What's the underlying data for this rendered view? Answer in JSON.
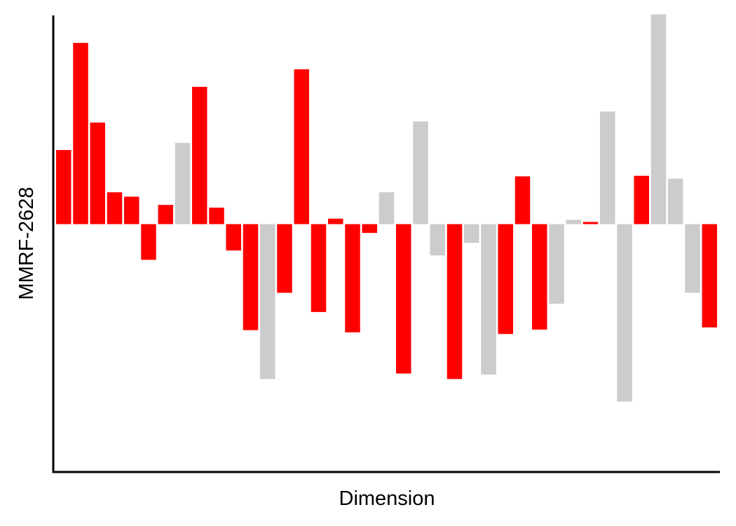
{
  "chart_data": {
    "type": "bar",
    "title": "",
    "xlabel": "Dimension",
    "ylabel": "MMRF-2628",
    "x_ticks_shown": false,
    "y_ticks_shown": false,
    "grid": false,
    "legend": "none",
    "ylim": [
      -4.5,
      3.8
    ],
    "colors": {
      "highlight": "#ff0000",
      "other": "#cccccc",
      "axis": "#000000"
    },
    "bars": [
      {
        "value": 1.35,
        "group": "highlight"
      },
      {
        "value": 3.3,
        "group": "highlight"
      },
      {
        "value": 1.85,
        "group": "highlight"
      },
      {
        "value": 0.58,
        "group": "highlight"
      },
      {
        "value": 0.5,
        "group": "highlight"
      },
      {
        "value": -0.65,
        "group": "highlight"
      },
      {
        "value": 0.35,
        "group": "highlight"
      },
      {
        "value": 1.48,
        "group": "other"
      },
      {
        "value": 2.5,
        "group": "highlight"
      },
      {
        "value": 0.3,
        "group": "highlight"
      },
      {
        "value": -0.48,
        "group": "highlight"
      },
      {
        "value": -1.93,
        "group": "highlight"
      },
      {
        "value": -2.82,
        "group": "other"
      },
      {
        "value": -1.25,
        "group": "highlight"
      },
      {
        "value": 2.82,
        "group": "highlight"
      },
      {
        "value": -1.6,
        "group": "highlight"
      },
      {
        "value": 0.1,
        "group": "highlight"
      },
      {
        "value": -1.97,
        "group": "highlight"
      },
      {
        "value": -0.16,
        "group": "highlight"
      },
      {
        "value": 0.58,
        "group": "other"
      },
      {
        "value": -2.72,
        "group": "highlight"
      },
      {
        "value": 1.87,
        "group": "other"
      },
      {
        "value": -0.57,
        "group": "other"
      },
      {
        "value": -2.82,
        "group": "highlight"
      },
      {
        "value": -0.34,
        "group": "other"
      },
      {
        "value": -2.74,
        "group": "other"
      },
      {
        "value": -2.0,
        "group": "highlight"
      },
      {
        "value": 0.87,
        "group": "highlight"
      },
      {
        "value": -1.92,
        "group": "highlight"
      },
      {
        "value": -1.45,
        "group": "other"
      },
      {
        "value": 0.08,
        "group": "other"
      },
      {
        "value": 0.04,
        "group": "highlight"
      },
      {
        "value": 2.05,
        "group": "other"
      },
      {
        "value": -3.23,
        "group": "other"
      },
      {
        "value": 0.88,
        "group": "highlight"
      },
      {
        "value": 3.82,
        "group": "other"
      },
      {
        "value": 0.83,
        "group": "other"
      },
      {
        "value": -1.25,
        "group": "other"
      },
      {
        "value": -1.88,
        "group": "highlight"
      }
    ]
  }
}
